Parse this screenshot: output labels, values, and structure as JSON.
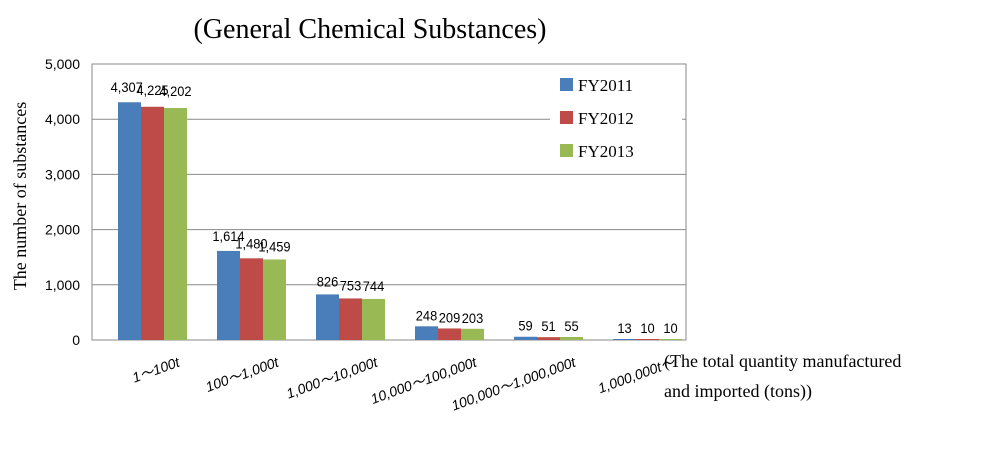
{
  "chart_data": {
    "type": "bar",
    "title": "(General Chemical Substances)",
    "ylabel": "The number of substances",
    "xlabel": "(The total quantity manufactured and imported (tons))",
    "xlabel_lines": [
      "(The total quantity manufactured",
      "and imported (tons))"
    ],
    "categories": [
      "1～100t",
      "100～1,000t",
      "1,000～10,000t",
      "10,000～100,000t",
      "100,000～1,000,000t",
      "1,000,000t～"
    ],
    "yticks": [
      "0",
      "1,000",
      "2,000",
      "3,000",
      "4,000",
      "5,000"
    ],
    "ylim": [
      0,
      5000
    ],
    "grid": true,
    "legend_position": "top-right",
    "series": [
      {
        "name": "FY2011",
        "color": "#4a7ebb",
        "values": [
          4307,
          1614,
          826,
          248,
          59,
          13
        ],
        "labels": [
          "4,307",
          "1,614",
          "826",
          "248",
          "59",
          "13"
        ]
      },
      {
        "name": "FY2012",
        "color": "#be4b48",
        "values": [
          4225,
          1480,
          753,
          209,
          51,
          10
        ],
        "labels": [
          "4,225",
          "1,480",
          "753",
          "209",
          "51",
          "10"
        ]
      },
      {
        "name": "FY2013",
        "color": "#98b954",
        "values": [
          4202,
          1459,
          744,
          203,
          55,
          10
        ],
        "labels": [
          "4,202",
          "1,459",
          "744",
          "203",
          "55",
          "10"
        ]
      }
    ]
  }
}
